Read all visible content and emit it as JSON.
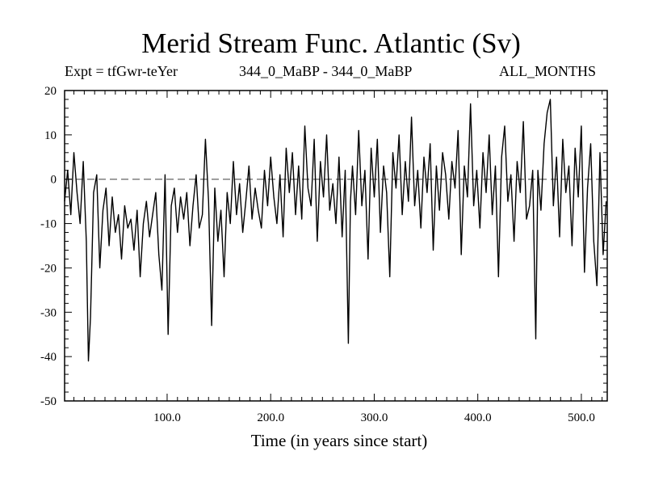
{
  "chart_data": {
    "type": "line",
    "title": "Merid Stream Func. Atlantic (Sv)",
    "subtitle_left": "Expt = tfGwr-teYer",
    "subtitle_center": "344_0_MaBP - 344_0_MaBP",
    "subtitle_right": "ALL_MONTHS",
    "xlabel": "Time (in years since start)",
    "ylabel": "",
    "xlim": [
      1,
      525
    ],
    "ylim": [
      -50,
      20
    ],
    "x_ticks": [
      100,
      200,
      300,
      400,
      500
    ],
    "x_tick_labels": [
      "100.0",
      "200.0",
      "300.0",
      "400.0",
      "500.0"
    ],
    "y_ticks": [
      20,
      10,
      0,
      -10,
      -20,
      -30,
      -40,
      -50
    ],
    "y_tick_labels": [
      "20",
      "10",
      "0",
      "-10",
      "-20",
      "-30",
      "-40",
      "-50"
    ],
    "reference_line": 0,
    "series": [
      {
        "name": "Merid Stream Func. Atlantic",
        "x": [
          1,
          4,
          7,
          10,
          13,
          16,
          19,
          22,
          24,
          26,
          29,
          32,
          35,
          38,
          41,
          44,
          47,
          50,
          53,
          56,
          59,
          62,
          65,
          68,
          71,
          74,
          77,
          80,
          83,
          86,
          89,
          92,
          95,
          98,
          101,
          104,
          107,
          110,
          113,
          116,
          119,
          122,
          125,
          128,
          131,
          134,
          137,
          140,
          143,
          146,
          149,
          152,
          155,
          158,
          161,
          164,
          167,
          170,
          173,
          176,
          179,
          182,
          185,
          188,
          191,
          194,
          197,
          200,
          203,
          206,
          209,
          212,
          215,
          218,
          221,
          224,
          227,
          230,
          233,
          236,
          239,
          242,
          245,
          248,
          251,
          254,
          257,
          260,
          263,
          266,
          269,
          272,
          275,
          277,
          279,
          282,
          285,
          288,
          291,
          294,
          297,
          300,
          303,
          306,
          309,
          312,
          315,
          318,
          321,
          324,
          327,
          330,
          333,
          336,
          339,
          342,
          345,
          348,
          351,
          354,
          357,
          360,
          363,
          366,
          369,
          372,
          375,
          378,
          381,
          384,
          387,
          390,
          393,
          396,
          399,
          402,
          405,
          408,
          411,
          414,
          417,
          420,
          423,
          426,
          429,
          432,
          435,
          438,
          441,
          444,
          447,
          450,
          453,
          456,
          458,
          461,
          464,
          467,
          470,
          473,
          476,
          479,
          482,
          485,
          488,
          491,
          494,
          497,
          500,
          503,
          506,
          509,
          512,
          515,
          518,
          521,
          524
        ],
        "values": [
          -5,
          2,
          -8,
          6,
          -3,
          -10,
          4,
          -14,
          -41,
          -31,
          -3,
          1,
          -20,
          -7,
          -2,
          -15,
          -4,
          -12,
          -8,
          -18,
          -6,
          -11,
          -9,
          -16,
          -7,
          -22,
          -10,
          -5,
          -13,
          -8,
          -3,
          -17,
          -25,
          1,
          -35,
          -6,
          -2,
          -12,
          -4,
          -9,
          -3,
          -15,
          -6,
          1,
          -11,
          -8,
          9,
          -5,
          -33,
          -2,
          -14,
          -7,
          -22,
          -3,
          -10,
          4,
          -8,
          -1,
          -12,
          -5,
          3,
          -9,
          -2,
          -7,
          -11,
          2,
          -6,
          5,
          -4,
          -10,
          1,
          -13,
          7,
          -3,
          6,
          -8,
          3,
          -9,
          12,
          -2,
          -6,
          9,
          -14,
          4,
          -4,
          10,
          -7,
          -1,
          -10,
          5,
          -13,
          2,
          -37,
          -5,
          3,
          -8,
          11,
          -6,
          2,
          -18,
          7,
          -4,
          9,
          -12,
          3,
          -3,
          -22,
          6,
          -2,
          10,
          -8,
          4,
          -5,
          14,
          -6,
          2,
          -11,
          5,
          -3,
          8,
          -16,
          3,
          -7,
          6,
          1,
          -9,
          4,
          -2,
          11,
          -17,
          3,
          -4,
          17,
          -6,
          2,
          -11,
          6,
          -3,
          10,
          -8,
          3,
          -22,
          5,
          12,
          -5,
          1,
          -14,
          4,
          -3,
          13,
          -9,
          -6,
          2,
          -36,
          2,
          -7,
          8,
          15,
          18,
          -6,
          5,
          -13,
          9,
          -3,
          3,
          -15,
          7,
          -4,
          12,
          -21,
          -2,
          8,
          -14,
          -24,
          6,
          -17,
          -5
        ]
      }
    ]
  }
}
